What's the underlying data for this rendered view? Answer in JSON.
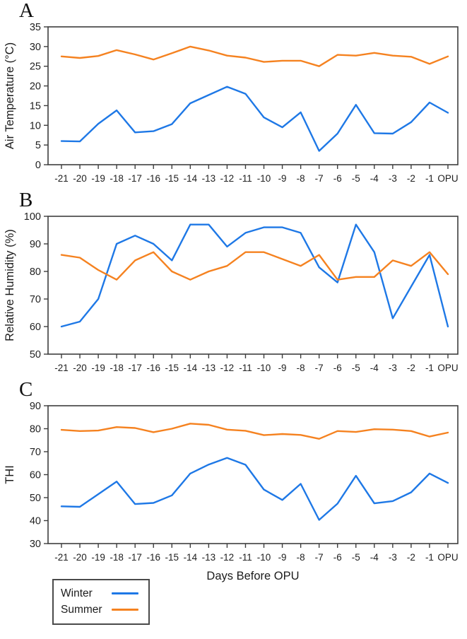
{
  "figure": {
    "xlabel": "Days Before OPU",
    "x_categories": [
      "-21",
      "-20",
      "-19",
      "-18",
      "-17",
      "-16",
      "-15",
      "-14",
      "-13",
      "-12",
      "-11",
      "-10",
      "-9",
      "-8",
      "-7",
      "-6",
      "-5",
      "-4",
      "-3",
      "-2",
      "-1",
      "OPU"
    ],
    "colors": {
      "winter": "#1e78e6",
      "summer": "#f58220",
      "axis": "#3d3d3d",
      "tick_text": "#212121"
    },
    "legend": {
      "position": "bottom-left",
      "items": [
        {
          "label": "Winter",
          "color": "#1e78e6"
        },
        {
          "label": "Summer",
          "color": "#f58220"
        }
      ]
    }
  },
  "chart_data": [
    {
      "type": "line",
      "panel_letter": "A",
      "ylabel": "Air Temperature (°C)",
      "ylim": [
        0,
        35
      ],
      "yticks": [
        0,
        5,
        10,
        15,
        20,
        25,
        30,
        35
      ],
      "grid": false,
      "categories": [
        "-21",
        "-20",
        "-19",
        "-18",
        "-17",
        "-16",
        "-15",
        "-14",
        "-13",
        "-12",
        "-11",
        "-10",
        "-9",
        "-8",
        "-7",
        "-6",
        "-5",
        "-4",
        "-3",
        "-2",
        "-1",
        "OPU"
      ],
      "series": [
        {
          "name": "Winter",
          "color": "#1e78e6",
          "values": [
            6,
            5.9,
            10.4,
            13.8,
            8.2,
            8.5,
            10.3,
            15.6,
            17.7,
            19.8,
            18,
            12,
            9.5,
            13.3,
            3.5,
            7.9,
            15.2,
            8,
            7.9,
            10.8,
            15.8,
            13.2
          ]
        },
        {
          "name": "Summer",
          "color": "#f58220",
          "values": [
            27.5,
            27.1,
            27.6,
            29.1,
            28,
            26.7,
            28.3,
            30,
            29,
            27.7,
            27.2,
            26.1,
            26.4,
            26.4,
            25,
            27.9,
            27.7,
            28.4,
            27.7,
            27.4,
            25.6,
            27.5
          ]
        }
      ]
    },
    {
      "type": "line",
      "panel_letter": "B",
      "ylabel": "Relative Humidity (%)",
      "ylim": [
        50,
        100
      ],
      "yticks": [
        50,
        60,
        70,
        80,
        90,
        100
      ],
      "grid": false,
      "categories": [
        "-21",
        "-20",
        "-19",
        "-18",
        "-17",
        "-16",
        "-15",
        "-14",
        "-13",
        "-12",
        "-11",
        "-10",
        "-9",
        "-8",
        "-7",
        "-6",
        "-5",
        "-4",
        "-3",
        "-2",
        "-1",
        "OPU"
      ],
      "series": [
        {
          "name": "Winter",
          "color": "#1e78e6",
          "values": [
            60,
            61.8,
            70,
            90,
            93,
            90,
            84,
            97,
            97,
            89,
            94,
            96,
            96,
            94,
            81.5,
            76,
            97,
            87,
            63,
            74.5,
            86,
            60
          ]
        },
        {
          "name": "Summer",
          "color": "#f58220",
          "values": [
            86,
            85,
            80.5,
            77,
            84,
            87,
            80,
            77,
            80,
            82,
            87,
            87,
            84.5,
            82,
            86,
            77,
            78,
            78,
            84,
            82,
            87,
            79
          ]
        }
      ]
    },
    {
      "type": "line",
      "panel_letter": "C",
      "ylabel": "THI",
      "ylim": [
        30,
        90
      ],
      "yticks": [
        30,
        40,
        50,
        60,
        70,
        80,
        90
      ],
      "grid": false,
      "categories": [
        "-21",
        "-20",
        "-19",
        "-18",
        "-17",
        "-16",
        "-15",
        "-14",
        "-13",
        "-12",
        "-11",
        "-10",
        "-9",
        "-8",
        "-7",
        "-6",
        "-5",
        "-4",
        "-3",
        "-2",
        "-1",
        "OPU"
      ],
      "series": [
        {
          "name": "Winter",
          "color": "#1e78e6",
          "values": [
            46.2,
            46,
            51.5,
            57,
            47.2,
            47.7,
            51,
            60.5,
            64.4,
            67.3,
            64.3,
            53.5,
            49,
            56,
            40.3,
            47.4,
            59.5,
            47.5,
            48.5,
            52.3,
            60.5,
            56.4
          ]
        },
        {
          "name": "Summer",
          "color": "#f58220",
          "values": [
            79.5,
            79,
            79.2,
            80.7,
            80.3,
            78.5,
            80,
            82.2,
            81.7,
            79.6,
            79.1,
            77.2,
            77.7,
            77.3,
            75.6,
            79,
            78.6,
            79.8,
            79.6,
            79,
            76.6,
            78.3
          ]
        }
      ]
    }
  ]
}
